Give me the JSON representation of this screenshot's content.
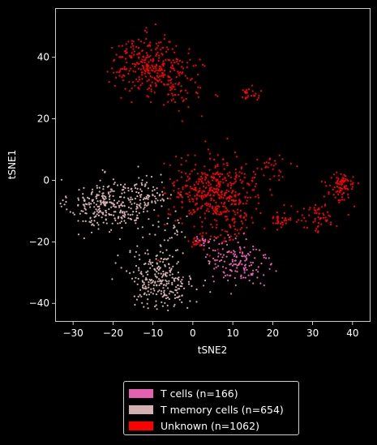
{
  "chart_data": {
    "type": "scatter",
    "title": "",
    "xlabel": "tSNE2",
    "ylabel": "tSNE1",
    "xlim": [
      -34.5,
      44.5
    ],
    "ylim": [
      -46,
      56
    ],
    "xticks": [
      -30,
      -20,
      -10,
      0,
      10,
      20,
      30,
      40
    ],
    "yticks": [
      -40,
      -20,
      0,
      20,
      40
    ],
    "xtick_labels": [
      "−30",
      "−20",
      "−10",
      "0",
      "10",
      "20",
      "30",
      "40"
    ],
    "ytick_labels": [
      "−40",
      "−20",
      "0",
      "20",
      "40"
    ],
    "grid": false,
    "legend_position": "below-center",
    "background": "#000000",
    "series": [
      {
        "name": "T cells (n=166)",
        "color": "#e65fb2",
        "n": 166,
        "clusters": [
          {
            "cx": 11,
            "cy": -27,
            "sx": 4.2,
            "sy": 4.5,
            "count": 150
          },
          {
            "cx": 3,
            "cy": -20,
            "sx": 1.5,
            "sy": 1.0,
            "count": 16
          }
        ]
      },
      {
        "name": "T memory cells (n=654)",
        "color": "#d4b0b0",
        "n": 654,
        "clusters": [
          {
            "cx": -22,
            "cy": -8,
            "sx": 4.5,
            "sy": 4.2,
            "count": 260
          },
          {
            "cx": -12,
            "cy": -6,
            "sx": 3.5,
            "sy": 4.0,
            "count": 110
          },
          {
            "cx": -8,
            "cy": -32,
            "sx": 4.2,
            "sy": 4.8,
            "count": 260
          },
          {
            "cx": -5,
            "cy": -18,
            "sx": 2.5,
            "sy": 2.5,
            "count": 24
          }
        ]
      },
      {
        "name": "Unknown (n=1062)",
        "color": "#ff0000",
        "n": 1062,
        "clusters": [
          {
            "cx": -11,
            "cy": 38,
            "sx": 4.5,
            "sy": 4.5,
            "count": 270
          },
          {
            "cx": -4,
            "cy": 30,
            "sx": 3.5,
            "sy": 4.0,
            "count": 80
          },
          {
            "cx": 14,
            "cy": 28,
            "sx": 1.2,
            "sy": 1.2,
            "count": 25
          },
          {
            "cx": 5,
            "cy": -3,
            "sx": 5.5,
            "sy": 5.0,
            "count": 350
          },
          {
            "cx": 9,
            "cy": -12,
            "sx": 4.5,
            "sy": 5.0,
            "count": 120
          },
          {
            "cx": 20,
            "cy": 4,
            "sx": 2.0,
            "sy": 1.5,
            "count": 30
          },
          {
            "cx": 37,
            "cy": -2,
            "sx": 1.8,
            "sy": 2.5,
            "count": 80
          },
          {
            "cx": 31,
            "cy": -12,
            "sx": 3.0,
            "sy": 2.5,
            "count": 60
          },
          {
            "cx": 1,
            "cy": -20,
            "sx": 1.2,
            "sy": 1.0,
            "count": 20
          },
          {
            "cx": 22,
            "cy": -13,
            "sx": 1.5,
            "sy": 1.0,
            "count": 27
          }
        ]
      }
    ]
  }
}
